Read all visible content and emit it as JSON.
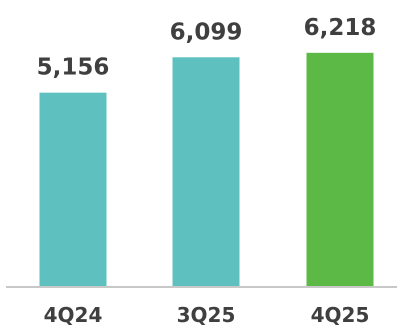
{
  "chart_data": {
    "type": "bar",
    "categories": [
      "4Q24",
      "3Q25",
      "4Q25"
    ],
    "values": [
      5156,
      6099,
      6218
    ],
    "value_labels": [
      "5,156",
      "6,099",
      "6,218"
    ],
    "colors": [
      "#5fc0c0",
      "#5fc0c0",
      "#5cb946"
    ],
    "axis_color": "#c8c8c8",
    "title": "",
    "xlabel": "",
    "ylabel": "",
    "ylim": [
      0,
      6400
    ],
    "grid": false,
    "legend": "none"
  }
}
